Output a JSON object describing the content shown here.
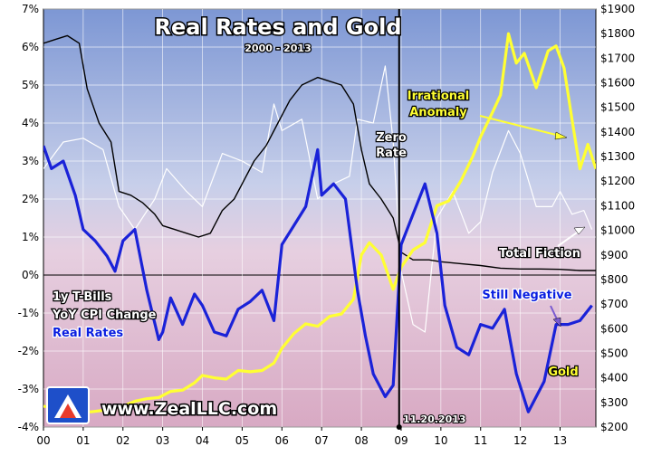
{
  "chart_data": {
    "type": "line",
    "title": "Real Rates and Gold",
    "subtitle": "2000 - 2013",
    "x_tick_labels": [
      "00",
      "01",
      "02",
      "03",
      "04",
      "05",
      "06",
      "07",
      "08",
      "09",
      "10",
      "11",
      "12",
      "13"
    ],
    "y_left_tick_labels": [
      "7%",
      "6%",
      "5%",
      "4%",
      "3%",
      "2%",
      "1%",
      "0%",
      "-1%",
      "-2%",
      "-3%",
      "-4%"
    ],
    "y_right_tick_labels": [
      "$1900",
      "$1800",
      "$1700",
      "$1600",
      "$1500",
      "$1400",
      "$1300",
      "$1200",
      "$1100",
      "$1000",
      "$900",
      "$800",
      "$700",
      "$600",
      "$500",
      "$400",
      "$300",
      "$200"
    ],
    "ylim_left": [
      -4,
      7
    ],
    "ylim_right": [
      200,
      1900
    ],
    "xlim": [
      2000.0,
      2013.9
    ],
    "series": [
      {
        "name": "1y T-Bills",
        "axis": "left",
        "color": "#000000",
        "x": [
          2000.0,
          2000.3,
          2000.6,
          2000.9,
          2001.1,
          2001.4,
          2001.7,
          2001.9,
          2002.2,
          2002.5,
          2002.8,
          2003.0,
          2003.3,
          2003.6,
          2003.9,
          2004.2,
          2004.5,
          2004.8,
          2005.0,
          2005.3,
          2005.6,
          2005.9,
          2006.2,
          2006.5,
          2006.9,
          2007.2,
          2007.5,
          2007.8,
          2008.0,
          2008.2,
          2008.5,
          2008.8,
          2009.0,
          2009.3,
          2009.7,
          2010.0,
          2010.5,
          2011.0,
          2011.5,
          2012.0,
          2012.5,
          2013.0,
          2013.5,
          2013.9
        ],
        "y": [
          6.1,
          6.2,
          6.3,
          6.1,
          4.9,
          4.0,
          3.5,
          2.2,
          2.1,
          1.9,
          1.6,
          1.3,
          1.2,
          1.1,
          1.0,
          1.1,
          1.7,
          2.0,
          2.4,
          3.0,
          3.4,
          4.0,
          4.6,
          5.0,
          5.2,
          5.1,
          5.0,
          4.5,
          3.3,
          2.4,
          2.0,
          1.5,
          0.6,
          0.4,
          0.4,
          0.35,
          0.3,
          0.25,
          0.18,
          0.16,
          0.16,
          0.15,
          0.12,
          0.12
        ]
      },
      {
        "name": "YoY CPI Change",
        "axis": "left",
        "color": "#ffffff",
        "x": [
          2000.0,
          2000.5,
          2001.0,
          2001.5,
          2001.9,
          2002.3,
          2002.8,
          2003.1,
          2003.6,
          2004.0,
          2004.5,
          2005.0,
          2005.5,
          2005.8,
          2006.0,
          2006.5,
          2006.9,
          2007.3,
          2007.7,
          2007.9,
          2008.3,
          2008.6,
          2008.8,
          2009.0,
          2009.3,
          2009.6,
          2009.9,
          2010.3,
          2010.7,
          2011.0,
          2011.3,
          2011.7,
          2012.0,
          2012.4,
          2012.8,
          2013.0,
          2013.3,
          2013.6,
          2013.8
        ],
        "y": [
          2.8,
          3.5,
          3.6,
          3.3,
          1.8,
          1.2,
          2.0,
          2.8,
          2.2,
          1.8,
          3.2,
          3.0,
          2.7,
          4.5,
          3.8,
          4.1,
          2.0,
          2.4,
          2.6,
          4.1,
          4.0,
          5.5,
          3.5,
          0.1,
          -1.3,
          -1.5,
          1.5,
          2.2,
          1.1,
          1.4,
          2.7,
          3.8,
          3.2,
          1.8,
          1.8,
          2.2,
          1.6,
          1.7,
          1.2
        ]
      },
      {
        "name": "Real Rates",
        "axis": "left",
        "color": "#1a22d8",
        "x": [
          2000.0,
          2000.2,
          2000.5,
          2000.8,
          2001.0,
          2001.3,
          2001.6,
          2001.8,
          2002.0,
          2002.3,
          2002.6,
          2002.9,
          2003.0,
          2003.2,
          2003.5,
          2003.8,
          2004.0,
          2004.3,
          2004.6,
          2004.9,
          2005.2,
          2005.5,
          2005.8,
          2006.0,
          2006.3,
          2006.6,
          2006.9,
          2007.0,
          2007.3,
          2007.6,
          2007.9,
          2008.1,
          2008.3,
          2008.6,
          2008.8,
          2009.0,
          2009.3,
          2009.6,
          2009.9,
          2010.1,
          2010.4,
          2010.7,
          2011.0,
          2011.3,
          2011.6,
          2011.9,
          2012.2,
          2012.6,
          2012.9,
          2013.2,
          2013.5,
          2013.8
        ],
        "y": [
          3.4,
          2.8,
          3.0,
          2.1,
          1.2,
          0.9,
          0.5,
          0.1,
          0.9,
          1.2,
          -0.4,
          -1.7,
          -1.5,
          -0.6,
          -1.3,
          -0.5,
          -0.8,
          -1.5,
          -1.6,
          -0.9,
          -0.7,
          -0.4,
          -1.2,
          0.8,
          1.3,
          1.8,
          3.3,
          2.1,
          2.4,
          2.0,
          -0.4,
          -1.6,
          -2.6,
          -3.2,
          -2.9,
          0.8,
          1.6,
          2.4,
          1.1,
          -0.8,
          -1.9,
          -2.1,
          -1.3,
          -1.4,
          -0.9,
          -2.6,
          -3.6,
          -2.8,
          -1.3,
          -1.3,
          -1.2,
          -0.8
        ]
      },
      {
        "name": "Gold",
        "axis": "right",
        "color": "#ffff33",
        "x": [
          2000.0,
          2000.3,
          2000.6,
          2000.9,
          2001.2,
          2001.5,
          2001.8,
          2002.0,
          2002.3,
          2002.6,
          2002.9,
          2003.2,
          2003.5,
          2003.8,
          2004.0,
          2004.3,
          2004.6,
          2004.9,
          2005.2,
          2005.5,
          2005.8,
          2006.0,
          2006.3,
          2006.6,
          2006.9,
          2007.2,
          2007.5,
          2007.8,
          2008.0,
          2008.2,
          2008.5,
          2008.8,
          2009.0,
          2009.3,
          2009.6,
          2009.9,
          2010.2,
          2010.5,
          2010.8,
          2011.0,
          2011.3,
          2011.5,
          2011.7,
          2011.9,
          2012.1,
          2012.4,
          2012.7,
          2012.9,
          2013.1,
          2013.3,
          2013.5,
          2013.7,
          2013.9
        ],
        "y": [
          285,
          275,
          270,
          265,
          262,
          268,
          280,
          285,
          305,
          315,
          320,
          345,
          350,
          380,
          410,
          400,
          395,
          430,
          425,
          430,
          460,
          520,
          580,
          620,
          610,
          650,
          660,
          720,
          900,
          950,
          900,
          760,
          850,
          920,
          950,
          1100,
          1120,
          1200,
          1300,
          1380,
          1480,
          1550,
          1800,
          1680,
          1720,
          1580,
          1730,
          1750,
          1660,
          1450,
          1250,
          1350,
          1250
        ]
      }
    ],
    "legend": [
      "1y T-Bills",
      "YoY CPI Change",
      "Real Rates",
      "Gold"
    ],
    "legend_position": "middle-left",
    "annotations": {
      "zero_rate": [
        "Zero",
        "Rate"
      ],
      "irrational": [
        "Irrational",
        "Anomaly"
      ],
      "total_fiction": "Total Fiction",
      "still_negative": "Still Negative",
      "gold_label": "Gold",
      "date": "11.20.2013",
      "url": "www.ZealLLC.com"
    },
    "colors": {
      "bg_top": "#7e99d6",
      "bg_bottom": "#d9b3c9",
      "treasury": "#000000",
      "cpi": "#ffffff",
      "real": "#1a22d8",
      "gold": "#ffff33"
    }
  }
}
